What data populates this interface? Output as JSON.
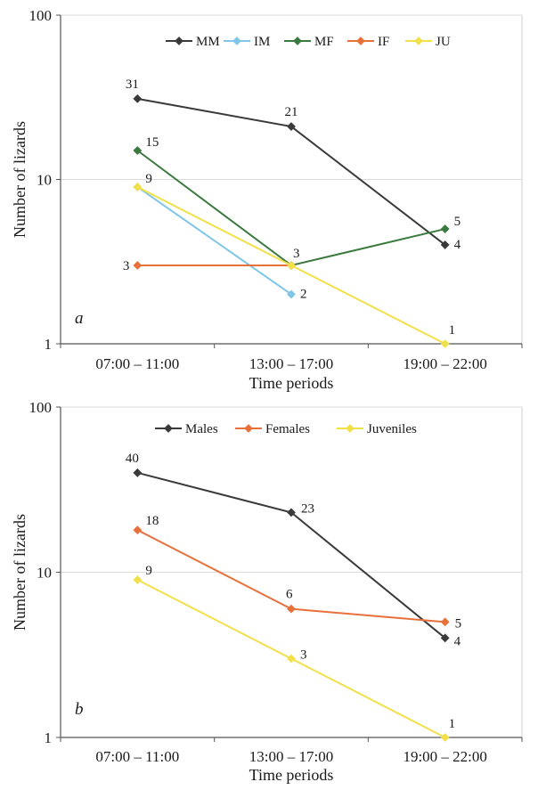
{
  "chart_data": [
    {
      "type": "line",
      "panel_label": "a",
      "xlabel": "Time periods",
      "ylabel": "Number of lizards",
      "y_scale": "log",
      "ylim": [
        1,
        100
      ],
      "y_ticks": [
        "1",
        "10",
        "100"
      ],
      "grid": "horizontal",
      "legend_position": "top-center",
      "categories": [
        "07:00 – 11:00",
        "13:00 – 17:00",
        "19:00 – 22:00"
      ],
      "series": [
        {
          "name": "MM",
          "color": "#3a3a3a",
          "values": [
            31,
            21,
            4
          ],
          "labels": [
            "31",
            "21",
            "4"
          ]
        },
        {
          "name": "IM",
          "color": "#7fc6e8",
          "values": [
            9,
            2,
            null
          ],
          "labels": [
            "",
            "2",
            ""
          ]
        },
        {
          "name": "MF",
          "color": "#3a7a3e",
          "values": [
            15,
            3,
            5
          ],
          "labels": [
            "15",
            "",
            "5"
          ]
        },
        {
          "name": "IF",
          "color": "#e8703a",
          "values": [
            3,
            3,
            null
          ],
          "labels": [
            "3",
            "",
            ""
          ]
        },
        {
          "name": "JU",
          "color": "#f2e04a",
          "values": [
            9,
            3,
            1
          ],
          "labels": [
            "9",
            "3",
            "1"
          ]
        }
      ]
    },
    {
      "type": "line",
      "panel_label": "b",
      "xlabel": "Time periods",
      "ylabel": "Number of lizards",
      "y_scale": "log",
      "ylim": [
        1,
        100
      ],
      "y_ticks": [
        "1",
        "10",
        "100"
      ],
      "grid": "horizontal",
      "legend_position": "top-center",
      "categories": [
        "07:00 – 11:00",
        "13:00 – 17:00",
        "19:00 – 22:00"
      ],
      "series": [
        {
          "name": "Males",
          "color": "#3a3a3a",
          "values": [
            40,
            23,
            4
          ],
          "labels": [
            "40",
            "23",
            "4"
          ]
        },
        {
          "name": "Females",
          "color": "#e8703a",
          "values": [
            18,
            6,
            5
          ],
          "labels": [
            "18",
            "6",
            "5"
          ]
        },
        {
          "name": "Juveniles",
          "color": "#f2e04a",
          "values": [
            9,
            3,
            1
          ],
          "labels": [
            "9",
            "3",
            "1"
          ]
        }
      ]
    }
  ]
}
